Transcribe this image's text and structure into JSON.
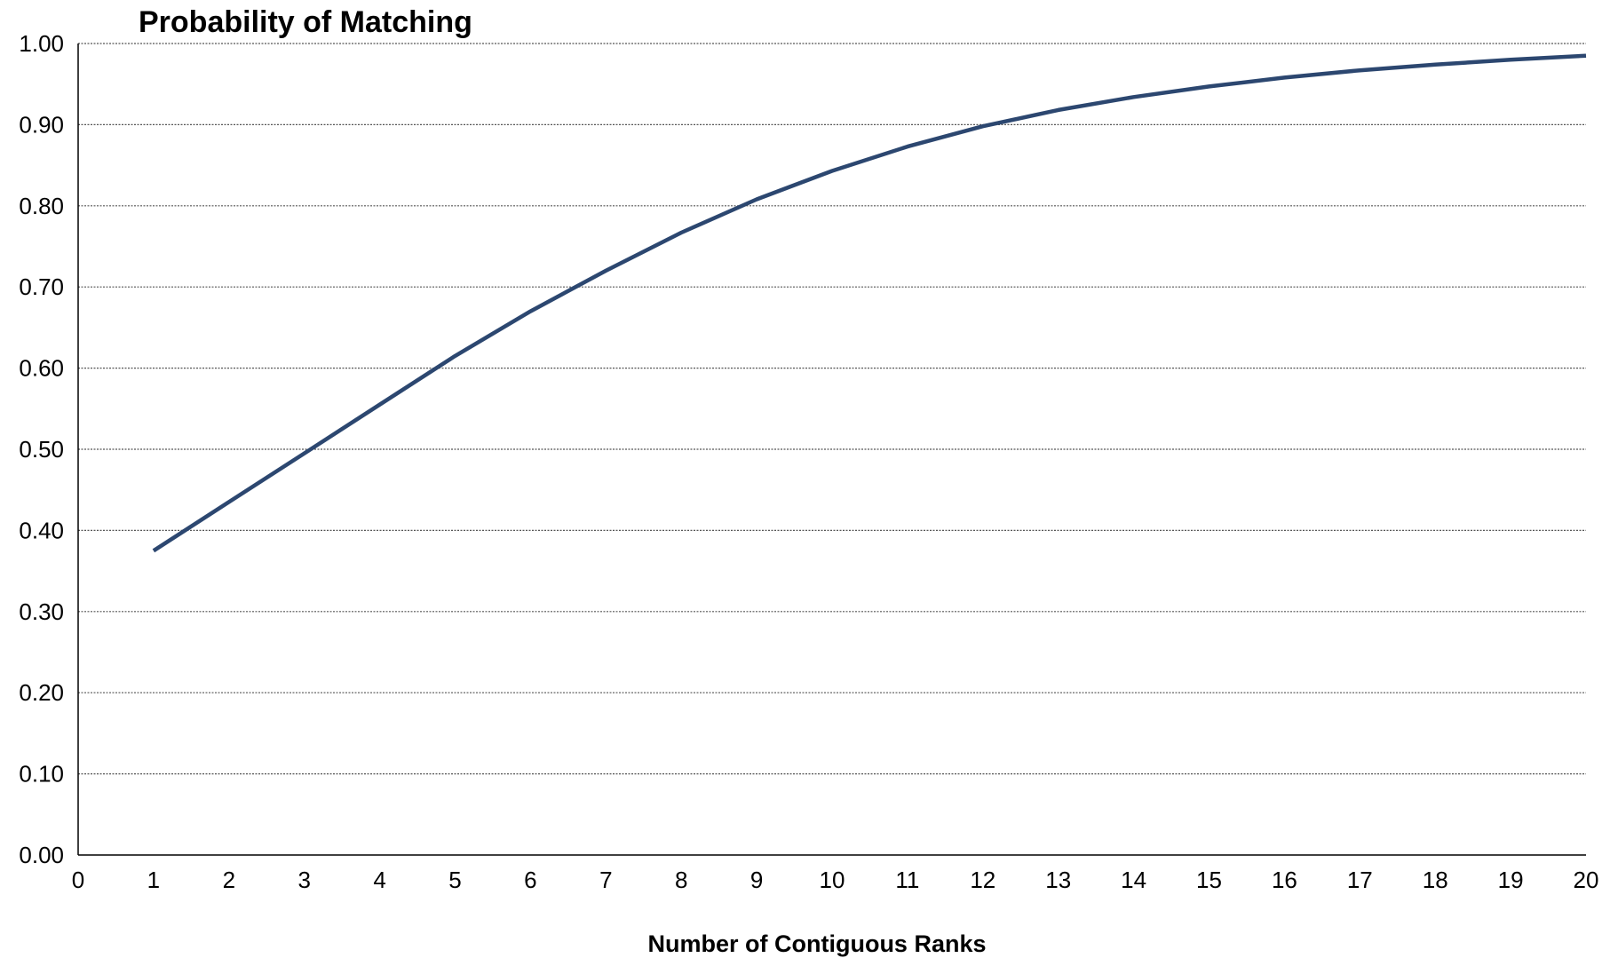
{
  "chart_data": {
    "type": "line",
    "title": "Probability of Matching",
    "xlabel": "Number of Contiguous Ranks",
    "ylabel": "",
    "xlim": [
      0,
      20
    ],
    "ylim": [
      0,
      1
    ],
    "x_ticks": [
      "0",
      "1",
      "2",
      "3",
      "4",
      "5",
      "6",
      "7",
      "8",
      "9",
      "10",
      "11",
      "12",
      "13",
      "14",
      "15",
      "16",
      "17",
      "18",
      "19",
      "20"
    ],
    "y_ticks": [
      "0.00",
      "0.10",
      "0.20",
      "0.30",
      "0.40",
      "0.50",
      "0.60",
      "0.70",
      "0.80",
      "0.90",
      "1.00"
    ],
    "grid": true,
    "legend": "none",
    "series": [
      {
        "color": "#2c4770",
        "x": [
          1,
          2,
          3,
          4,
          5,
          6,
          7,
          8,
          9,
          10,
          11,
          12,
          13,
          14,
          15,
          16,
          17,
          18,
          19,
          20
        ],
        "values": [
          0.375,
          0.435,
          0.495,
          0.555,
          0.615,
          0.67,
          0.72,
          0.767,
          0.808,
          0.843,
          0.873,
          0.898,
          0.918,
          0.934,
          0.947,
          0.958,
          0.967,
          0.974,
          0.98,
          0.985
        ]
      }
    ]
  }
}
